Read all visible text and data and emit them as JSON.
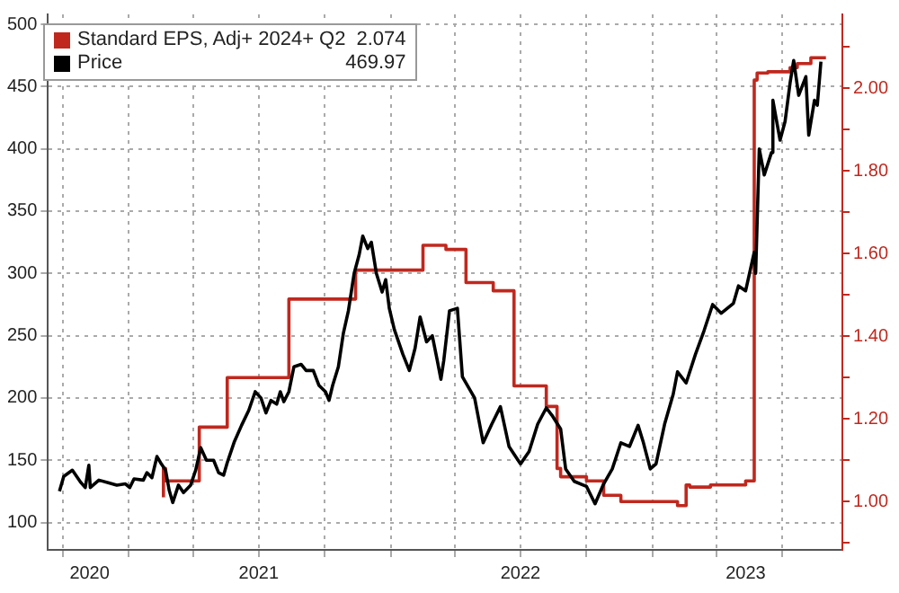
{
  "chart_data": {
    "type": "line",
    "legend": "top left",
    "grid": true,
    "annotations": [
      "2.074",
      "469.97"
    ],
    "xlim": [
      "2020-09-10",
      "2023-09-23"
    ],
    "xticks": [
      {
        "value": "2020-10-01",
        "label": null
      },
      {
        "value": "2020-11-07",
        "label": "2020"
      },
      {
        "value": "2021-01-01",
        "label": null
      },
      {
        "value": "2021-04-01",
        "label": null
      },
      {
        "value": "2021-07-01",
        "label": null
      },
      {
        "value": "2021-07-01",
        "label": "2021"
      },
      {
        "value": "2021-10-01",
        "label": null
      },
      {
        "value": "2022-01-01",
        "label": null
      },
      {
        "value": "2022-04-01",
        "label": null
      },
      {
        "value": "2022-07-01",
        "label": null
      },
      {
        "value": "2022-07-01",
        "label": "2022"
      },
      {
        "value": "2022-10-01",
        "label": null
      },
      {
        "value": "2023-01-01",
        "label": null
      },
      {
        "value": "2023-04-01",
        "label": null
      },
      {
        "value": "2023-05-11",
        "label": "2023"
      },
      {
        "value": "2023-07-01",
        "label": null
      }
    ],
    "ylim": [
      78,
      508
    ],
    "yticks": [
      100,
      150,
      200,
      250,
      300,
      350,
      400,
      450,
      500
    ],
    "y2lim": [
      0.883,
      2.179
    ],
    "y2ticks": [
      {
        "value": 0.9,
        "label": null
      },
      {
        "value": 1.0,
        "label": "1.00"
      },
      {
        "value": 1.1,
        "label": null
      },
      {
        "value": 1.2,
        "label": "1.20"
      },
      {
        "value": 1.3,
        "label": null
      },
      {
        "value": 1.4,
        "label": "1.40"
      },
      {
        "value": 1.5,
        "label": null
      },
      {
        "value": 1.6,
        "label": "1.60"
      },
      {
        "value": 1.7,
        "label": null
      },
      {
        "value": 1.8,
        "label": "1.80"
      },
      {
        "value": 1.9,
        "label": null
      },
      {
        "value": 2.0,
        "label": "2.00"
      },
      {
        "value": 2.1,
        "label": null
      }
    ],
    "series": [
      {
        "name": "Standard EPS, Adj+ 2024+ Q2",
        "type": "step",
        "axis": "y2",
        "color": "#c0281e",
        "x": [
          "2021-02-18",
          "2021-02-21",
          "2021-04-09",
          "2021-05-18",
          "2021-08-12",
          "2021-11-13",
          "2022-02-15",
          "2022-03-19",
          "2022-04-16",
          "2022-05-24",
          "2022-06-22",
          "2022-08-06",
          "2022-08-21",
          "2022-08-26",
          "2022-10-01",
          "2022-10-25",
          "2022-11-18",
          "2023-02-05",
          "2023-02-17",
          "2023-02-22",
          "2023-03-23",
          "2023-05-11",
          "2023-05-23",
          "2023-05-27",
          "2023-06-11",
          "2023-07-12",
          "2023-07-22",
          "2023-08-10",
          "2023-08-22",
          "2023-08-31"
        ],
        "values": [
          1.01,
          1.08,
          1.05,
          1.18,
          1.3,
          1.49,
          1.56,
          1.62,
          1.61,
          1.53,
          1.51,
          1.28,
          1.23,
          1.08,
          1.06,
          1.05,
          1.015,
          1.0,
          0.99,
          1.04,
          1.035,
          1.04,
          1.05,
          2.02,
          2.037,
          2.04,
          2.05,
          2.06,
          2.074,
          2.074
        ]
      },
      {
        "name": "Price",
        "type": "line",
        "color": "#000000",
        "x": [
          "2020-09-26",
          "2020-10-02",
          "2020-10-14",
          "2020-10-26",
          "2020-11-01",
          "2020-11-06",
          "2020-11-08",
          "2020-11-20",
          "2020-12-03",
          "2020-12-15",
          "2020-12-27",
          "2021-01-02",
          "2021-01-08",
          "2021-01-21",
          "2021-01-26",
          "2021-02-02",
          "2021-02-09",
          "2021-02-14",
          "2021-02-21",
          "2021-02-26",
          "2021-03-03",
          "2021-03-11",
          "2021-03-18",
          "2021-03-28",
          "2021-04-04",
          "2021-04-11",
          "2021-04-19",
          "2021-04-29",
          "2021-05-06",
          "2021-05-13",
          "2021-05-18",
          "2021-05-28",
          "2021-06-07",
          "2021-06-17",
          "2021-06-26",
          "2021-07-04",
          "2021-07-11",
          "2021-07-18",
          "2021-07-26",
          "2021-07-31",
          "2021-08-05",
          "2021-08-12",
          "2021-08-19",
          "2021-08-29",
          "2021-09-05",
          "2021-09-15",
          "2021-09-23",
          "2021-10-02",
          "2021-10-07",
          "2021-10-12",
          "2021-10-20",
          "2021-10-27",
          "2021-11-03",
          "2021-11-11",
          "2021-11-18",
          "2021-11-23",
          "2021-11-30",
          "2021-12-05",
          "2021-12-12",
          "2021-12-20",
          "2021-12-25",
          "2021-12-30",
          "2022-01-06",
          "2022-01-18",
          "2022-01-27",
          "2022-02-04",
          "2022-02-11",
          "2022-02-20",
          "2022-02-28",
          "2022-03-07",
          "2022-03-12",
          "2022-03-16",
          "2022-03-24",
          "2022-04-04",
          "2022-04-11",
          "2022-04-28",
          "2022-05-10",
          "2022-05-22",
          "2022-06-03",
          "2022-06-15",
          "2022-07-01",
          "2022-07-13",
          "2022-07-25",
          "2022-08-06",
          "2022-08-14",
          "2022-08-26",
          "2022-09-02",
          "2022-09-14",
          "2022-10-01",
          "2022-10-13",
          "2022-10-25",
          "2022-11-06",
          "2022-11-18",
          "2022-11-30",
          "2022-12-12",
          "2022-12-19",
          "2022-12-29",
          "2023-01-06",
          "2023-01-18",
          "2023-01-30",
          "2023-02-05",
          "2023-02-17",
          "2023-03-02",
          "2023-03-14",
          "2023-03-26",
          "2023-04-07",
          "2023-04-24",
          "2023-05-01",
          "2023-05-11",
          "2023-05-23",
          "2023-05-25",
          "2023-05-30",
          "2023-06-06",
          "2023-06-16",
          "2023-06-18",
          "2023-06-28",
          "2023-07-05",
          "2023-07-12",
          "2023-07-17",
          "2023-07-24",
          "2023-08-03",
          "2023-08-07",
          "2023-08-15",
          "2023-08-19",
          "2023-08-24"
        ],
        "values": [
          125,
          137,
          142,
          132,
          128,
          146,
          128,
          134,
          132,
          130,
          131,
          128,
          135,
          134,
          140,
          136,
          153,
          148,
          142,
          126,
          116,
          130,
          124,
          130,
          142,
          160,
          150,
          150,
          140,
          138,
          148,
          165,
          178,
          190,
          205,
          200,
          188,
          198,
          195,
          205,
          197,
          205,
          225,
          227,
          222,
          222,
          210,
          205,
          198,
          210,
          225,
          252,
          270,
          300,
          315,
          330,
          320,
          325,
          300,
          285,
          295,
          272,
          255,
          235,
          222,
          240,
          265,
          245,
          250,
          230,
          215,
          230,
          270,
          272,
          217,
          200,
          164,
          179,
          193,
          161,
          147,
          157,
          179,
          192,
          186,
          175,
          143,
          133,
          129,
          115,
          131,
          143,
          164,
          161,
          178,
          165,
          143,
          147,
          179,
          203,
          221,
          212,
          235,
          254,
          275,
          268,
          276,
          290,
          286,
          317,
          300,
          400,
          379,
          397,
          439,
          407,
          422,
          453,
          471,
          443,
          458,
          411,
          439,
          435,
          469.97
        ]
      }
    ]
  }
}
